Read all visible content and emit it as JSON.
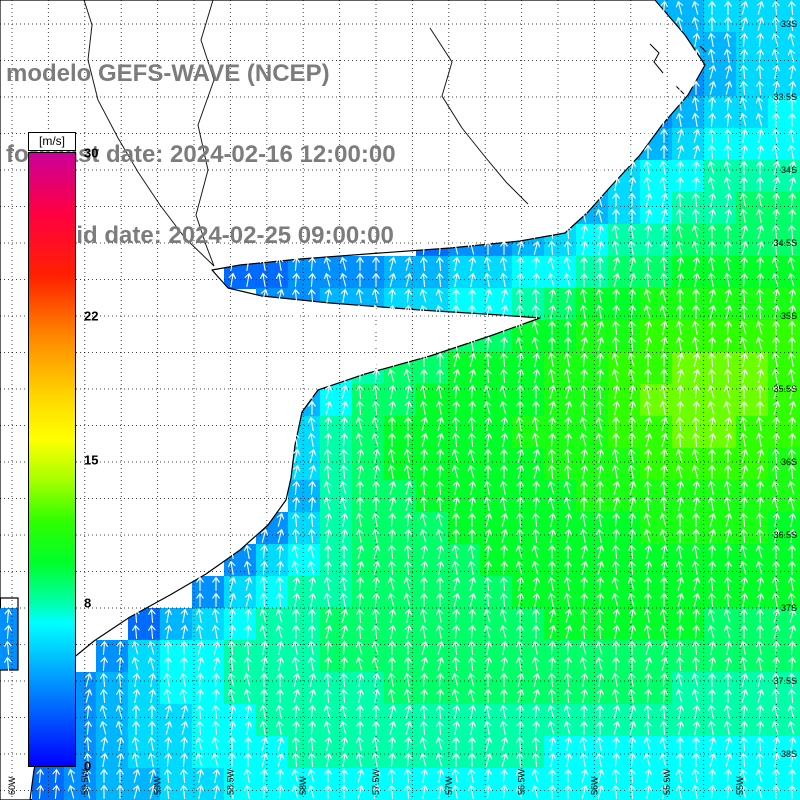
{
  "title": {
    "line1": "modelo GEFS-WAVE (NCEP)",
    "line2": "forecast date: 2024-02-16 12:00:00",
    "line3": "valid date: 2024-02-25 09:00:00"
  },
  "colorbar": {
    "unit_label": "[m/s]",
    "ticks": [
      "30",
      "22",
      "15",
      "8",
      "0"
    ],
    "min": 0,
    "max": 30,
    "colormap": [
      {
        "v": 0,
        "c": "#0000FF"
      },
      {
        "v": 4,
        "c": "#0090FF"
      },
      {
        "v": 7,
        "c": "#00FFFF"
      },
      {
        "v": 8,
        "c": "#00FFA8"
      },
      {
        "v": 10,
        "c": "#00FF28"
      },
      {
        "v": 12,
        "c": "#30FF00"
      },
      {
        "v": 14,
        "c": "#A8FF00"
      },
      {
        "v": 16,
        "c": "#FFFF00"
      },
      {
        "v": 18,
        "c": "#FFD800"
      },
      {
        "v": 21,
        "c": "#FF8800"
      },
      {
        "v": 24,
        "c": "#FF2000"
      },
      {
        "v": 27,
        "c": "#FF0040"
      },
      {
        "v": 30,
        "c": "#CC0099"
      }
    ]
  },
  "axes": {
    "lat_labels": [
      "33S",
      "33.5S",
      "34S",
      "34.5S",
      "35S",
      "35.5S",
      "36S",
      "36.5S",
      "37S",
      "37.5S",
      "38S"
    ],
    "lon_labels": [
      "60W",
      "59.5W",
      "59W",
      "58.5W",
      "58W",
      "57.5W",
      "57W",
      "56.5W",
      "56W",
      "55.5W",
      "55W"
    ]
  },
  "chart_data": {
    "type": "heatmap",
    "model": "GEFS-WAVE (NCEP)",
    "forecast_date": "2024-02-16 12:00:00",
    "valid_date": "2024-02-25 09:00:00",
    "variable": "wind speed",
    "units": "m/s",
    "value_range": [
      0,
      30
    ],
    "land_value": -1,
    "region": {
      "lat": [
        "33S",
        "38S"
      ],
      "lon": [
        "60W",
        "55W"
      ],
      "area": "Rio de la Plata / Buenos Aires coast"
    },
    "arrows": {
      "color": "white",
      "direction": "generally northward"
    },
    "grid": {
      "cols": 25,
      "rows": 25
    },
    "values": [
      [
        -1,
        -1,
        -1,
        -1,
        -1,
        -1,
        -1,
        -1,
        -1,
        -1,
        -1,
        -1,
        -1,
        -1,
        -1,
        -1,
        -1,
        -1,
        -1,
        -1,
        5,
        5,
        6,
        6,
        6
      ],
      [
        -1,
        -1,
        -1,
        -1,
        -1,
        -1,
        -1,
        -1,
        -1,
        -1,
        -1,
        -1,
        -1,
        -1,
        -1,
        -1,
        -1,
        -1,
        -1,
        -1,
        -1,
        5,
        5,
        6,
        6
      ],
      [
        -1,
        -1,
        -1,
        -1,
        -1,
        -1,
        -1,
        -1,
        -1,
        -1,
        -1,
        -1,
        -1,
        -1,
        -1,
        -1,
        -1,
        -1,
        -1,
        -1,
        -1,
        4,
        5,
        6,
        6
      ],
      [
        -1,
        -1,
        -1,
        -1,
        -1,
        -1,
        -1,
        -1,
        -1,
        -1,
        -1,
        -1,
        -1,
        -1,
        -1,
        -1,
        -1,
        -1,
        -1,
        -1,
        4,
        5,
        6,
        6,
        7
      ],
      [
        -1,
        -1,
        -1,
        -1,
        -1,
        -1,
        -1,
        -1,
        -1,
        -1,
        -1,
        -1,
        -1,
        -1,
        -1,
        -1,
        -1,
        -1,
        -1,
        4,
        5,
        6,
        7,
        7,
        7
      ],
      [
        -1,
        -1,
        -1,
        -1,
        -1,
        -1,
        -1,
        -1,
        -1,
        -1,
        -1,
        -1,
        -1,
        -1,
        -1,
        -1,
        -1,
        -1,
        4,
        6,
        7,
        7,
        8,
        8,
        8
      ],
      [
        -1,
        -1,
        -1,
        -1,
        -1,
        -1,
        -1,
        -1,
        -1,
        -1,
        -1,
        -1,
        -1,
        -1,
        -1,
        -1,
        -1,
        -1,
        5,
        6,
        7,
        8,
        8,
        9,
        9
      ],
      [
        -1,
        -1,
        -1,
        -1,
        -1,
        -1,
        -1,
        -1,
        -1,
        -1,
        -1,
        -1,
        -1,
        3,
        4,
        4,
        5,
        6,
        7,
        8,
        8,
        9,
        9,
        9,
        9
      ],
      [
        -1,
        -1,
        -1,
        -1,
        -1,
        -1,
        -1,
        3,
        3,
        4,
        4,
        4,
        5,
        5,
        6,
        6,
        7,
        7,
        8,
        9,
        9,
        10,
        10,
        10,
        10
      ],
      [
        -1,
        -1,
        -1,
        -1,
        -1,
        -1,
        -1,
        -1,
        4,
        4,
        5,
        5,
        6,
        6,
        7,
        7,
        8,
        9,
        10,
        10,
        11,
        11,
        11,
        11,
        11
      ],
      [
        -1,
        -1,
        -1,
        -1,
        -1,
        -1,
        -1,
        -1,
        -1,
        -1,
        5,
        6,
        7,
        8,
        9,
        9,
        10,
        10,
        11,
        11,
        12,
        12,
        12,
        12,
        12
      ],
      [
        -1,
        -1,
        -1,
        -1,
        -1,
        -1,
        -1,
        -1,
        -1,
        5,
        7,
        8,
        9,
        9,
        10,
        10,
        10,
        11,
        11,
        12,
        12,
        13,
        13,
        13,
        12
      ],
      [
        -1,
        -1,
        -1,
        -1,
        -1,
        -1,
        -1,
        -1,
        -1,
        5,
        7,
        9,
        9,
        10,
        10,
        10,
        10,
        11,
        11,
        12,
        13,
        13,
        13,
        13,
        12
      ],
      [
        -1,
        -1,
        -1,
        -1,
        -1,
        -1,
        -1,
        -1,
        -1,
        6,
        8,
        9,
        10,
        10,
        10,
        10,
        11,
        11,
        11,
        12,
        12,
        13,
        13,
        12,
        12
      ],
      [
        -1,
        -1,
        -1,
        -1,
        -1,
        -1,
        -1,
        -1,
        -1,
        6,
        8,
        9,
        10,
        10,
        10,
        10,
        10,
        11,
        11,
        11,
        12,
        12,
        12,
        12,
        11
      ],
      [
        -1,
        -1,
        -1,
        -1,
        -1,
        -1,
        -1,
        -1,
        -1,
        5,
        8,
        9,
        9,
        10,
        10,
        10,
        10,
        10,
        11,
        11,
        11,
        11,
        11,
        11,
        11
      ],
      [
        -1,
        -1,
        -1,
        -1,
        -1,
        -1,
        -1,
        -1,
        4,
        6,
        8,
        9,
        9,
        9,
        10,
        10,
        10,
        10,
        10,
        10,
        11,
        11,
        11,
        11,
        10
      ],
      [
        -1,
        -1,
        -1,
        -1,
        -1,
        -1,
        -1,
        4,
        6,
        7,
        8,
        9,
        9,
        9,
        9,
        10,
        10,
        10,
        10,
        10,
        10,
        10,
        10,
        10,
        10
      ],
      [
        -1,
        -1,
        -1,
        -1,
        -1,
        -1,
        4,
        6,
        7,
        8,
        8,
        9,
        9,
        9,
        9,
        9,
        10,
        10,
        10,
        10,
        10,
        10,
        10,
        10,
        10
      ],
      [
        4,
        -1,
        -1,
        -1,
        3,
        5,
        6,
        7,
        8,
        8,
        9,
        9,
        9,
        9,
        9,
        9,
        9,
        10,
        10,
        10,
        10,
        10,
        9,
        9,
        9
      ],
      [
        4,
        -1,
        -1,
        4,
        6,
        7,
        7,
        8,
        8,
        8,
        9,
        9,
        9,
        9,
        9,
        9,
        9,
        9,
        9,
        9,
        9,
        9,
        9,
        9,
        9
      ],
      [
        -1,
        -1,
        4,
        5,
        6,
        7,
        7,
        8,
        8,
        8,
        8,
        8,
        9,
        9,
        9,
        9,
        9,
        9,
        9,
        9,
        9,
        8,
        8,
        8,
        8
      ],
      [
        -1,
        -1,
        4,
        5,
        6,
        6,
        7,
        7,
        8,
        8,
        8,
        8,
        8,
        8,
        8,
        8,
        8,
        8,
        8,
        8,
        8,
        8,
        8,
        8,
        8
      ],
      [
        -1,
        3,
        4,
        5,
        6,
        6,
        7,
        7,
        7,
        8,
        8,
        8,
        8,
        8,
        8,
        8,
        8,
        7,
        7,
        7,
        7,
        7,
        7,
        7,
        7
      ],
      [
        -1,
        3,
        4,
        5,
        5,
        6,
        6,
        7,
        7,
        7,
        7,
        7,
        7,
        7,
        7,
        7,
        7,
        7,
        7,
        7,
        7,
        7,
        7,
        7,
        7
      ]
    ]
  }
}
